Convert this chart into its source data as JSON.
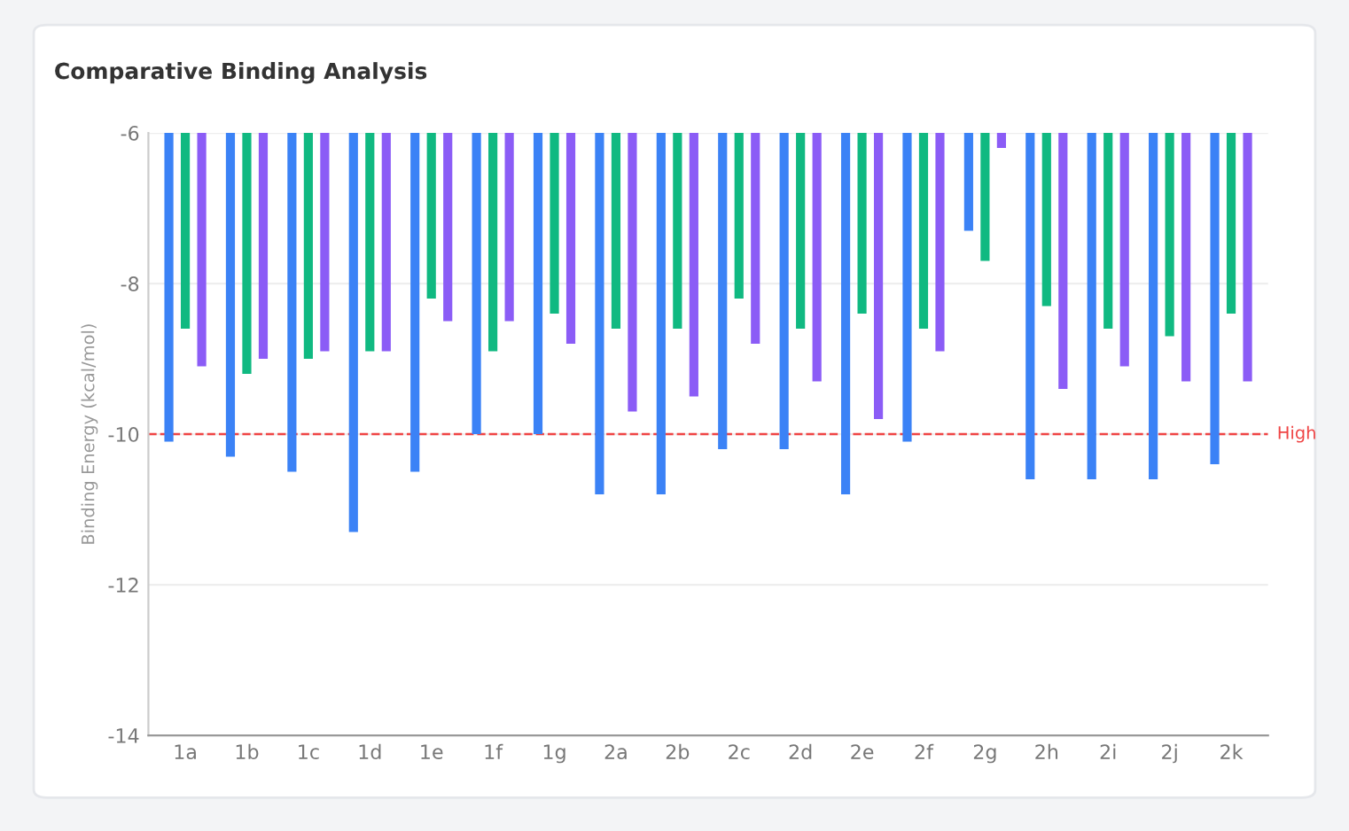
{
  "chart_data": {
    "type": "bar",
    "title": "Comparative Binding Analysis",
    "ylabel": "Binding Energy (kcal/mol)",
    "categories": [
      "1a",
      "1b",
      "1c",
      "1d",
      "1e",
      "1f",
      "1g",
      "2a",
      "2b",
      "2c",
      "2d",
      "2e",
      "2f",
      "2g",
      "2h",
      "2i",
      "2j",
      "2k"
    ],
    "series": [
      {
        "color": "#3b82f6",
        "values": [
          -10.1,
          -10.3,
          -10.5,
          -11.3,
          -10.5,
          -10.0,
          -10.0,
          -10.8,
          -10.8,
          -10.2,
          -10.2,
          -10.8,
          -10.1,
          -7.3,
          -10.6,
          -10.6,
          -10.6,
          -10.4
        ]
      },
      {
        "color": "#10b981",
        "values": [
          -8.6,
          -9.2,
          -9.0,
          -8.9,
          -8.2,
          -8.9,
          -8.4,
          -8.6,
          -8.6,
          -8.2,
          -8.6,
          -8.4,
          -8.6,
          -7.7,
          -8.3,
          -8.6,
          -8.7,
          -8.4
        ]
      },
      {
        "color": "#8b5cf6",
        "values": [
          -9.1,
          -9.0,
          -8.9,
          -8.9,
          -8.5,
          -8.5,
          -8.8,
          -9.7,
          -9.5,
          -8.8,
          -9.3,
          -9.8,
          -8.9,
          -6.2,
          -9.4,
          -9.1,
          -9.3,
          -9.3
        ]
      }
    ],
    "ylim": [
      -14,
      -6
    ],
    "yticks": [
      -14,
      -12,
      -10,
      -8,
      -6
    ],
    "grid": "y",
    "ref_lines": [
      {
        "axis": "y",
        "value": -10,
        "label": "High",
        "color": "#ef4444",
        "line_style": "dashed"
      }
    ]
  }
}
